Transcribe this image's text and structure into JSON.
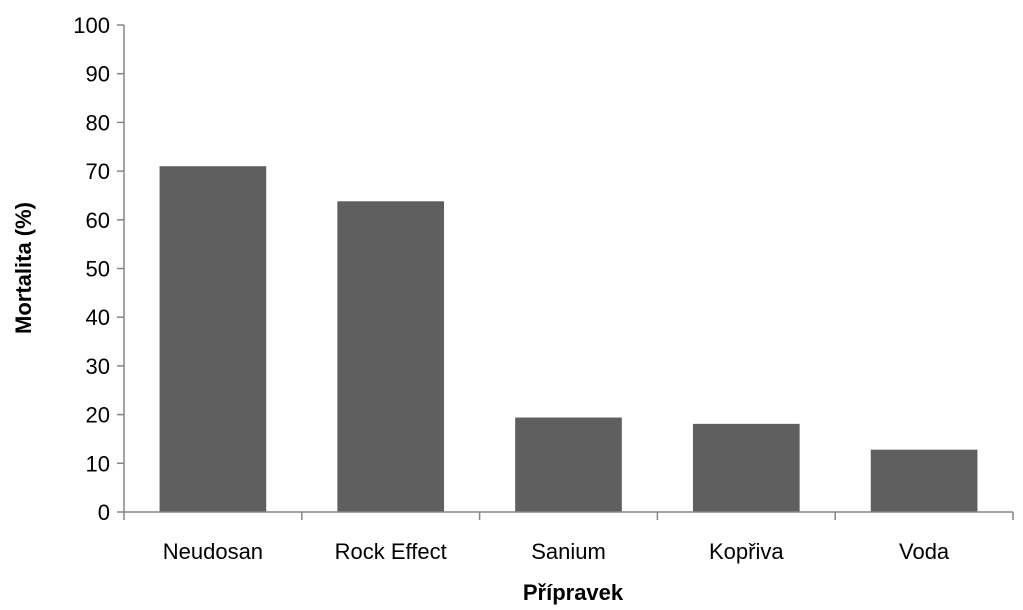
{
  "chart_data": {
    "type": "bar",
    "title": "",
    "xlabel": "Přípravek",
    "ylabel": "Mortalita (%)",
    "categories": [
      "Neudosan",
      "Rock Effect",
      "Sanium",
      "Kopřiva",
      "Voda"
    ],
    "values": [
      71,
      63.8,
      19.4,
      18.1,
      12.8
    ],
    "ylim": [
      0,
      100
    ],
    "yticks": [
      0,
      10,
      20,
      30,
      40,
      50,
      60,
      70,
      80,
      90,
      100
    ],
    "ytick_labels": [
      "0",
      "10",
      "20",
      "30",
      "40",
      "50",
      "60",
      "70",
      "80",
      "90",
      "100"
    ],
    "grid": false,
    "legend": "none",
    "bar_color": "#5f5f5f",
    "axis_color": "#868686"
  }
}
